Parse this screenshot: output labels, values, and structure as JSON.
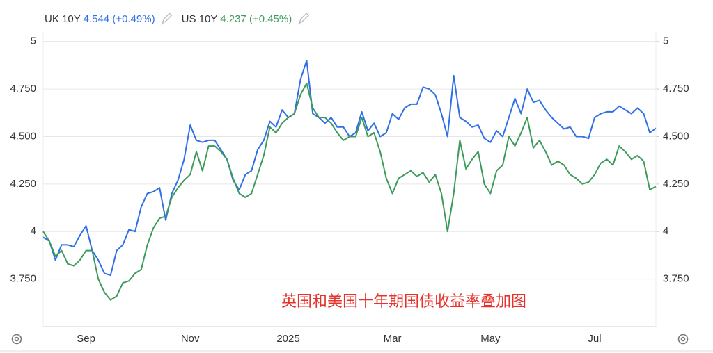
{
  "chart_data": {
    "type": "line",
    "annotation": "英国和美国十年期国债收益率叠加图",
    "categories": [
      null,
      null,
      null,
      null,
      null,
      null,
      null,
      "Sep",
      null,
      null,
      null,
      null,
      null,
      null,
      null,
      null,
      null,
      null,
      null,
      null,
      null,
      null,
      null,
      null,
      "Nov",
      null,
      null,
      null,
      null,
      null,
      null,
      null,
      null,
      null,
      null,
      null,
      null,
      null,
      null,
      null,
      "2025",
      null,
      null,
      null,
      null,
      null,
      null,
      null,
      null,
      null,
      null,
      null,
      null,
      null,
      null,
      null,
      null,
      "Mar",
      null,
      null,
      null,
      null,
      null,
      null,
      null,
      null,
      null,
      null,
      null,
      null,
      null,
      null,
      null,
      "May",
      null,
      null,
      null,
      null,
      null,
      null,
      null,
      null,
      null,
      null,
      null,
      null,
      null,
      null,
      null,
      null,
      "Jul",
      null,
      null,
      null,
      null,
      null,
      null,
      null,
      null,
      null,
      null
    ],
    "series": [
      {
        "name": "UK 10Y",
        "color": "#2f6fe8",
        "change_label": "(+0.49%)",
        "values": [
          3.97,
          3.95,
          3.85,
          3.93,
          3.93,
          3.92,
          3.98,
          4.03,
          3.9,
          3.85,
          3.78,
          3.77,
          3.9,
          3.93,
          4.01,
          4.0,
          4.13,
          4.2,
          4.21,
          4.23,
          4.06,
          4.2,
          4.27,
          4.38,
          4.56,
          4.48,
          4.47,
          4.48,
          4.48,
          4.43,
          4.38,
          4.27,
          4.22,
          4.3,
          4.32,
          4.43,
          4.48,
          4.58,
          4.55,
          4.64,
          4.6,
          4.62,
          4.8,
          4.9,
          4.62,
          4.6,
          4.57,
          4.6,
          4.55,
          4.55,
          4.5,
          4.52,
          4.63,
          4.53,
          4.57,
          4.5,
          4.52,
          4.62,
          4.59,
          4.65,
          4.67,
          4.67,
          4.76,
          4.75,
          4.72,
          4.62,
          4.5,
          4.82,
          4.6,
          4.58,
          4.55,
          4.56,
          4.49,
          4.47,
          4.53,
          4.5,
          4.6,
          4.7,
          4.62,
          4.75,
          4.68,
          4.69,
          4.64,
          4.6,
          4.57,
          4.54,
          4.55,
          4.5,
          4.5,
          4.49,
          4.6,
          4.62,
          4.63,
          4.63,
          4.66,
          4.64,
          4.62,
          4.65,
          4.62,
          4.52,
          4.544
        ]
      },
      {
        "name": "US 10Y",
        "color": "#3d9a5a",
        "change_label": "(+0.45%)",
        "values": [
          4.0,
          3.95,
          3.87,
          3.9,
          3.83,
          3.82,
          3.85,
          3.9,
          3.9,
          3.75,
          3.68,
          3.64,
          3.66,
          3.73,
          3.74,
          3.78,
          3.8,
          3.93,
          4.02,
          4.07,
          4.08,
          4.18,
          4.23,
          4.27,
          4.3,
          4.42,
          4.32,
          4.45,
          4.45,
          4.42,
          4.38,
          4.28,
          4.2,
          4.18,
          4.2,
          4.3,
          4.4,
          4.55,
          4.52,
          4.57,
          4.6,
          4.62,
          4.72,
          4.78,
          4.65,
          4.6,
          4.6,
          4.57,
          4.52,
          4.48,
          4.5,
          4.5,
          4.6,
          4.5,
          4.52,
          4.42,
          4.28,
          4.2,
          4.28,
          4.3,
          4.32,
          4.29,
          4.31,
          4.26,
          4.3,
          4.2,
          4.0,
          4.2,
          4.48,
          4.33,
          4.38,
          4.42,
          4.25,
          4.2,
          4.32,
          4.35,
          4.5,
          4.45,
          4.52,
          4.6,
          4.44,
          4.48,
          4.42,
          4.35,
          4.37,
          4.35,
          4.3,
          4.28,
          4.25,
          4.26,
          4.3,
          4.36,
          4.38,
          4.35,
          4.45,
          4.42,
          4.38,
          4.4,
          4.37,
          4.22,
          4.237
        ]
      }
    ],
    "ylim": [
      3.5,
      5.05
    ],
    "yticks": [
      {
        "value": 3.75,
        "label": "3.750"
      },
      4,
      {
        "value": 4.25,
        "label": "4.250"
      },
      {
        "value": 4.5,
        "label": "4.500"
      },
      {
        "value": 4.75,
        "label": "4.750"
      },
      5
    ],
    "y2lim": [
      3.5,
      5.05
    ],
    "y2ticks": [
      {
        "value": 3.75,
        "label": "3.750"
      },
      4,
      {
        "value": 4.25,
        "label": "4.250"
      },
      {
        "value": 4.5,
        "label": "4.500"
      },
      {
        "value": 4.75,
        "label": "4.750"
      },
      5
    ],
    "grid": true
  }
}
